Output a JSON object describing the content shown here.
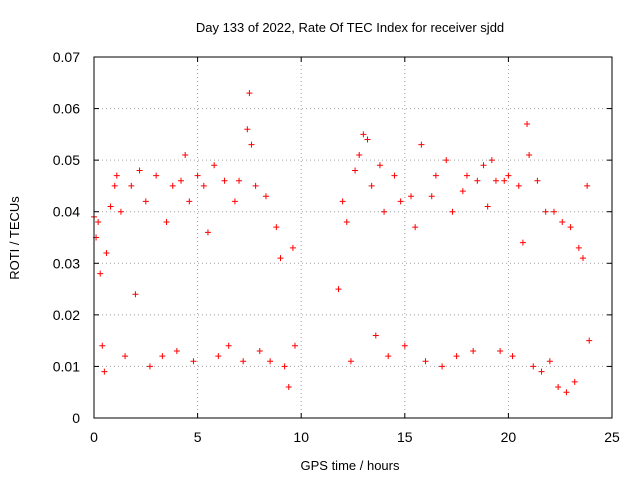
{
  "chart_data": {
    "type": "scatter",
    "title": "Day 133 of 2022, Rate Of TEC Index for receiver sjdd",
    "xlabel": "GPS time / hours",
    "ylabel": "ROTI / TECUs",
    "xlim": [
      0,
      25
    ],
    "ylim": [
      0,
      0.07
    ],
    "x_ticks": [
      "0",
      "5",
      "10",
      "15",
      "20",
      "25"
    ],
    "y_ticks": [
      "0",
      "0.01",
      "0.02",
      "0.03",
      "0.04",
      "0.05",
      "0.06",
      "0.07"
    ],
    "grid": true,
    "legend": "none",
    "marker": "+",
    "color": "#ff0000",
    "data_gap_hours": [
      9.8,
      11.8
    ],
    "points": [
      [
        0.0,
        0.039
      ],
      [
        0.1,
        0.035
      ],
      [
        0.2,
        0.038
      ],
      [
        0.3,
        0.028
      ],
      [
        0.4,
        0.014
      ],
      [
        0.5,
        0.009
      ],
      [
        0.6,
        0.032
      ],
      [
        0.8,
        0.041
      ],
      [
        1.0,
        0.045
      ],
      [
        1.1,
        0.047
      ],
      [
        1.3,
        0.04
      ],
      [
        1.5,
        0.012
      ],
      [
        1.8,
        0.045
      ],
      [
        2.0,
        0.024
      ],
      [
        2.2,
        0.048
      ],
      [
        2.5,
        0.042
      ],
      [
        2.7,
        0.01
      ],
      [
        3.0,
        0.047
      ],
      [
        3.3,
        0.012
      ],
      [
        3.5,
        0.038
      ],
      [
        3.8,
        0.045
      ],
      [
        4.0,
        0.013
      ],
      [
        4.2,
        0.046
      ],
      [
        4.4,
        0.051
      ],
      [
        4.6,
        0.042
      ],
      [
        4.8,
        0.011
      ],
      [
        5.0,
        0.047
      ],
      [
        5.3,
        0.045
      ],
      [
        5.5,
        0.036
      ],
      [
        5.8,
        0.049
      ],
      [
        6.0,
        0.012
      ],
      [
        6.3,
        0.046
      ],
      [
        6.5,
        0.014
      ],
      [
        6.8,
        0.042
      ],
      [
        7.0,
        0.046
      ],
      [
        7.2,
        0.011
      ],
      [
        7.4,
        0.056
      ],
      [
        7.5,
        0.063
      ],
      [
        7.6,
        0.053
      ],
      [
        7.8,
        0.045
      ],
      [
        8.0,
        0.013
      ],
      [
        8.3,
        0.043
      ],
      [
        8.5,
        0.011
      ],
      [
        8.8,
        0.037
      ],
      [
        9.0,
        0.031
      ],
      [
        9.2,
        0.01
      ],
      [
        9.4,
        0.006
      ],
      [
        9.6,
        0.033
      ],
      [
        9.7,
        0.014
      ],
      [
        11.8,
        0.025
      ],
      [
        12.0,
        0.042
      ],
      [
        12.2,
        0.038
      ],
      [
        12.4,
        0.011
      ],
      [
        12.6,
        0.048
      ],
      [
        12.8,
        0.051
      ],
      [
        13.0,
        0.055
      ],
      [
        13.2,
        0.054
      ],
      [
        13.4,
        0.045
      ],
      [
        13.6,
        0.016
      ],
      [
        13.8,
        0.049
      ],
      [
        14.0,
        0.04
      ],
      [
        14.2,
        0.012
      ],
      [
        14.5,
        0.047
      ],
      [
        14.8,
        0.042
      ],
      [
        15.0,
        0.014
      ],
      [
        15.3,
        0.043
      ],
      [
        15.5,
        0.037
      ],
      [
        15.8,
        0.053
      ],
      [
        16.0,
        0.011
      ],
      [
        16.3,
        0.043
      ],
      [
        16.5,
        0.047
      ],
      [
        16.8,
        0.01
      ],
      [
        17.0,
        0.05
      ],
      [
        17.3,
        0.04
      ],
      [
        17.5,
        0.012
      ],
      [
        17.8,
        0.044
      ],
      [
        18.0,
        0.047
      ],
      [
        18.3,
        0.013
      ],
      [
        18.5,
        0.046
      ],
      [
        18.8,
        0.049
      ],
      [
        19.0,
        0.041
      ],
      [
        19.2,
        0.05
      ],
      [
        19.4,
        0.046
      ],
      [
        19.6,
        0.013
      ],
      [
        19.8,
        0.046
      ],
      [
        20.0,
        0.047
      ],
      [
        20.2,
        0.012
      ],
      [
        20.5,
        0.045
      ],
      [
        20.7,
        0.034
      ],
      [
        20.9,
        0.057
      ],
      [
        21.0,
        0.051
      ],
      [
        21.2,
        0.01
      ],
      [
        21.4,
        0.046
      ],
      [
        21.6,
        0.009
      ],
      [
        21.8,
        0.04
      ],
      [
        22.0,
        0.011
      ],
      [
        22.2,
        0.04
      ],
      [
        22.4,
        0.006
      ],
      [
        22.6,
        0.038
      ],
      [
        22.8,
        0.005
      ],
      [
        23.0,
        0.037
      ],
      [
        23.2,
        0.007
      ],
      [
        23.4,
        0.033
      ],
      [
        23.6,
        0.031
      ],
      [
        23.8,
        0.045
      ],
      [
        23.9,
        0.015
      ]
    ]
  }
}
